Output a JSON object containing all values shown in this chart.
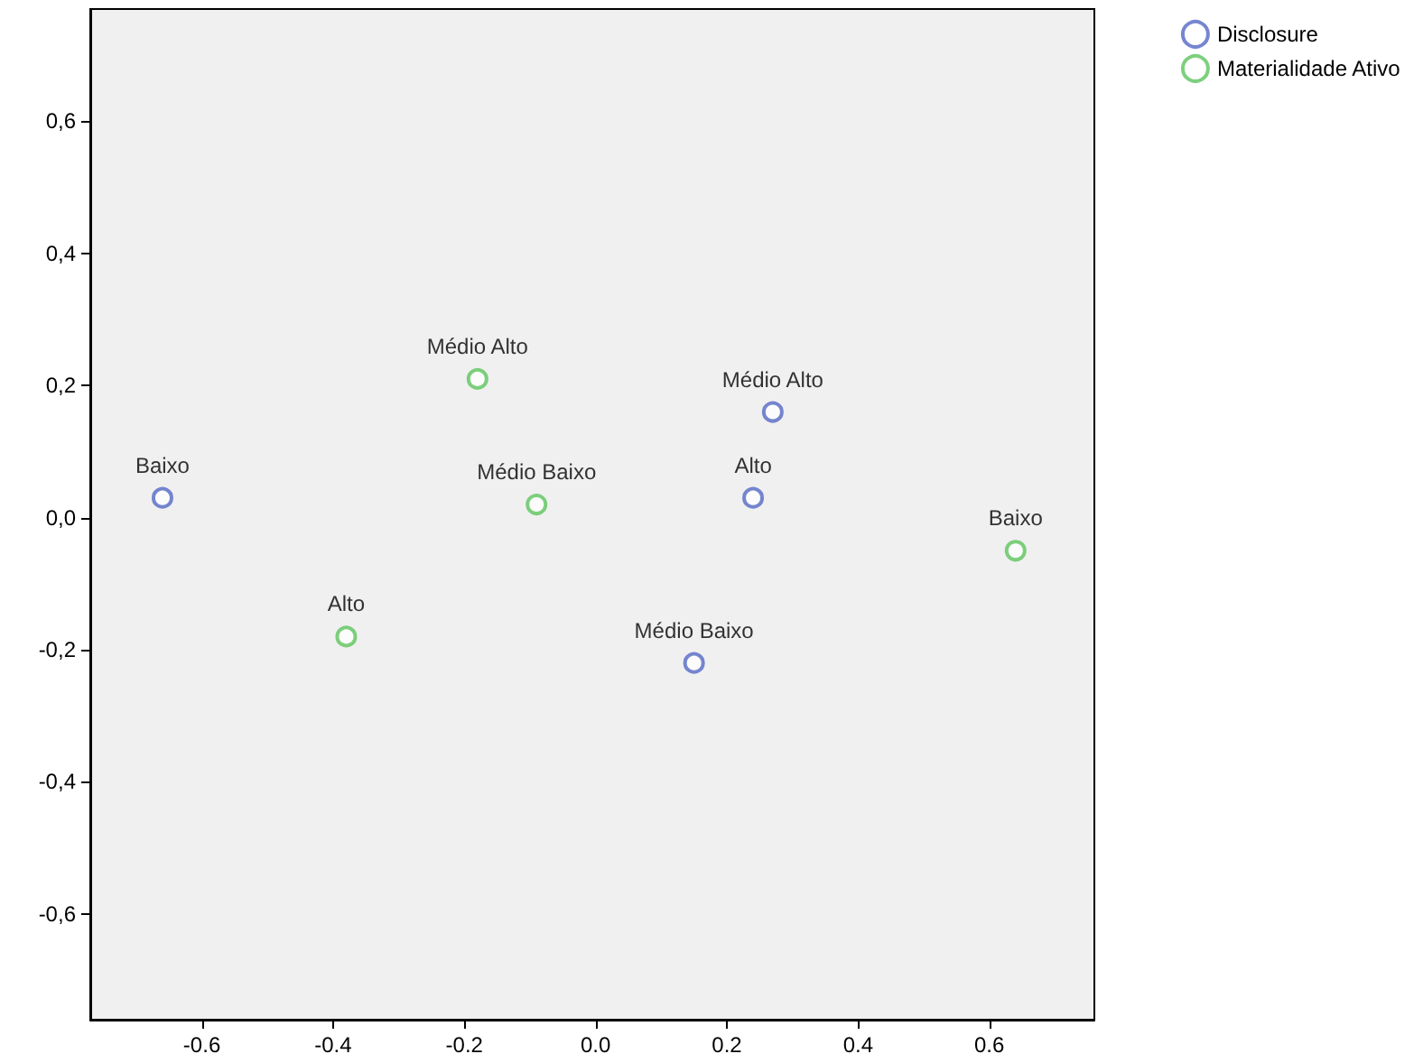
{
  "chart_data": {
    "type": "scatter",
    "marker": "circle",
    "grid": false,
    "legend": "top right",
    "xlim": [
      -0.77,
      0.76
    ],
    "ylim": [
      -0.76,
      0.77
    ],
    "xticks": [
      {
        "value": -0.6,
        "label": "-0.6"
      },
      {
        "value": -0.4,
        "label": "-0.4"
      },
      {
        "value": -0.2,
        "label": "-0.2"
      },
      {
        "value": 0,
        "label": "0.0"
      },
      {
        "value": 0.2,
        "label": "0.2"
      },
      {
        "value": 0.4,
        "label": "0.4"
      },
      {
        "value": 0.6,
        "label": "0.6"
      }
    ],
    "yticks": [
      {
        "value": -0.6,
        "label": "-0,6"
      },
      {
        "value": -0.4,
        "label": "-0,4"
      },
      {
        "value": -0.2,
        "label": "-0,2"
      },
      {
        "value": 0,
        "label": "0,0"
      },
      {
        "value": 0.2,
        "label": "0,2"
      },
      {
        "value": 0.4,
        "label": "0,4"
      },
      {
        "value": 0.6,
        "label": "0,6"
      }
    ],
    "series": [
      {
        "name": "Disclosure",
        "color": "#5468c4",
        "x": [
          -0.66,
          0.27,
          0.24,
          0.15
        ],
        "values": [
          0.03,
          0.16,
          0.03,
          -0.22
        ],
        "value_labels": [
          "Baixo",
          "Médio Alto",
          "Alto",
          "Médio Baixo"
        ]
      },
      {
        "name": "Materialidade Ativo",
        "color": "#5cc45c",
        "x": [
          -0.18,
          -0.09,
          -0.38,
          0.64
        ],
        "values": [
          0.21,
          0.02,
          -0.18,
          -0.05
        ],
        "value_labels": [
          "Médio Alto",
          "Médio Baixo",
          "Alto",
          "Baixo"
        ]
      }
    ]
  }
}
